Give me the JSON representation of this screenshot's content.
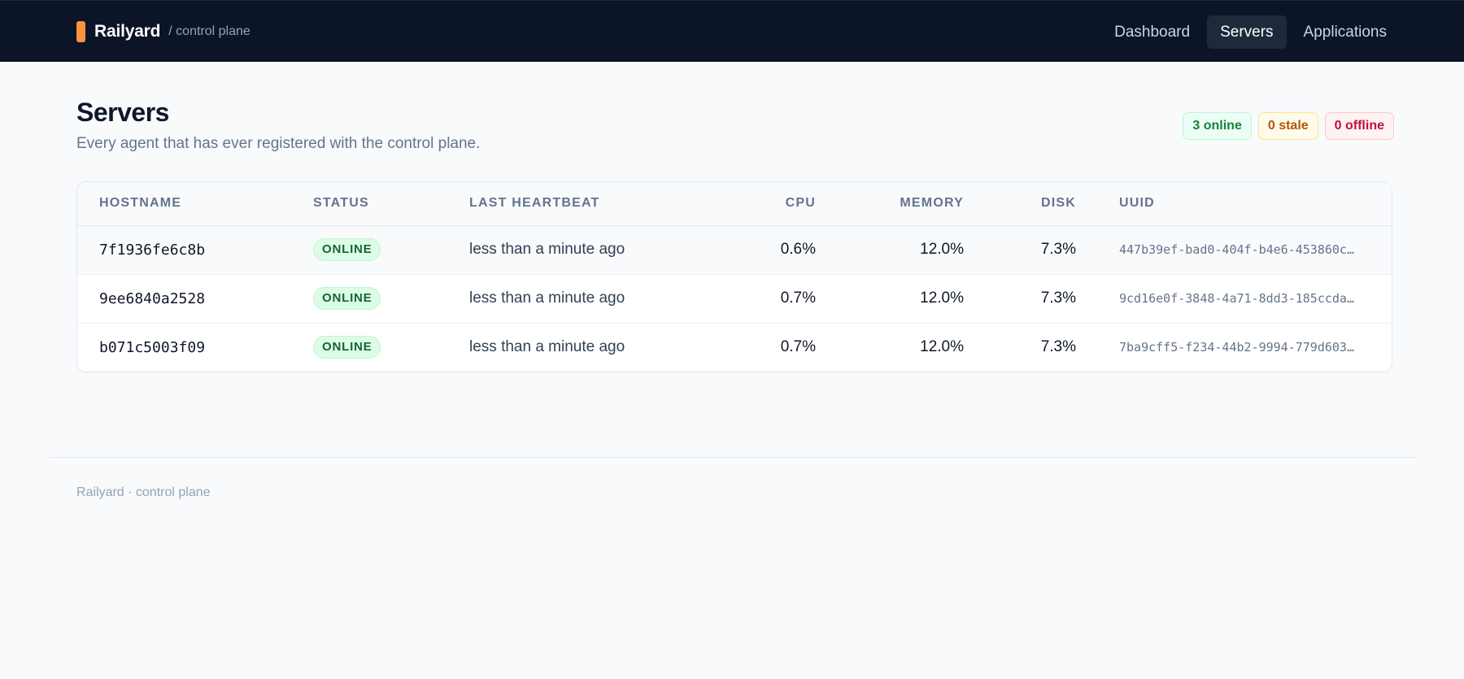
{
  "header": {
    "brand_name": "Railyard",
    "brand_sub": "/ control plane",
    "nav": [
      {
        "label": "Dashboard",
        "active": false
      },
      {
        "label": "Servers",
        "active": true
      },
      {
        "label": "Applications",
        "active": false
      }
    ]
  },
  "page": {
    "title": "Servers",
    "subtitle": "Every agent that has ever registered with the control plane."
  },
  "summary": {
    "online": "3 online",
    "stale": "0 stale",
    "offline": "0 offline"
  },
  "table": {
    "columns": [
      "HOSTNAME",
      "STATUS",
      "LAST HEARTBEAT",
      "CPU",
      "MEMORY",
      "DISK",
      "UUID"
    ],
    "rows": [
      {
        "hostname": "7f1936fe6c8b",
        "status": "ONLINE",
        "heartbeat": "less than a minute ago",
        "cpu": "0.6%",
        "memory": "12.0%",
        "disk": "7.3%",
        "uuid": "447b39ef-bad0-404f-b4e6-453860c…"
      },
      {
        "hostname": "9ee6840a2528",
        "status": "ONLINE",
        "heartbeat": "less than a minute ago",
        "cpu": "0.7%",
        "memory": "12.0%",
        "disk": "7.3%",
        "uuid": "9cd16e0f-3848-4a71-8dd3-185ccda…"
      },
      {
        "hostname": "b071c5003f09",
        "status": "ONLINE",
        "heartbeat": "less than a minute ago",
        "cpu": "0.7%",
        "memory": "12.0%",
        "disk": "7.3%",
        "uuid": "7ba9cff5-f234-44b2-9994-779d603…"
      }
    ]
  },
  "footer": {
    "text": "Railyard · control plane"
  },
  "colors": {
    "header_bg": "#0c1427",
    "brand_accent": "#fb923c",
    "online": "#166534",
    "stale": "#b45309",
    "offline": "#be123c"
  }
}
